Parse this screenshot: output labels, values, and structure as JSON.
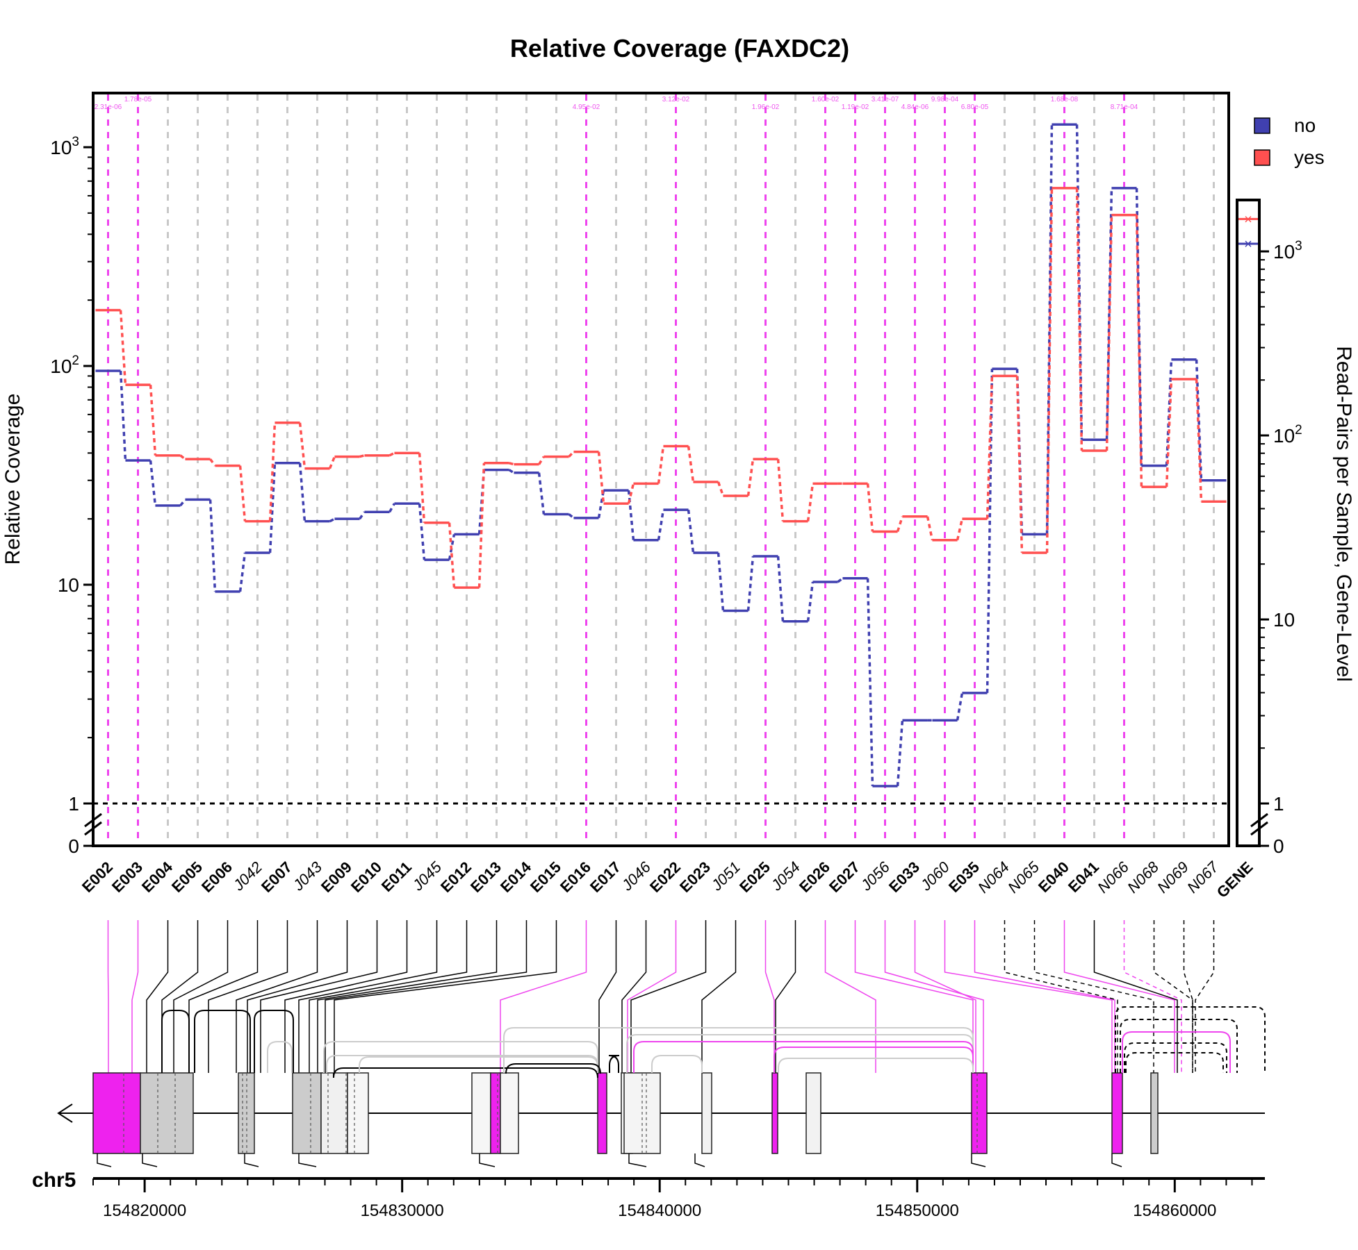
{
  "chart_data": {
    "type": "line",
    "title": "Relative Coverage (FAXDC2)",
    "ylabel": "Relative Coverage",
    "ylabel_right": "Read-Pairs per Sample, Gene-Level",
    "y_scale": "log",
    "y_ticks_left": [
      "0",
      "1",
      "10",
      "10^2",
      "10^3"
    ],
    "y_ticks_right": [
      "0",
      "1",
      "10",
      "10^2",
      "10^3"
    ],
    "reference_line": 1,
    "features": [
      {
        "id": "E002",
        "kind": "exon",
        "sig": true
      },
      {
        "id": "E003",
        "kind": "exon",
        "sig": true
      },
      {
        "id": "E004",
        "kind": "exon",
        "sig": false
      },
      {
        "id": "E005",
        "kind": "exon",
        "sig": false
      },
      {
        "id": "E006",
        "kind": "exon",
        "sig": false
      },
      {
        "id": "J042",
        "kind": "junction",
        "sig": false
      },
      {
        "id": "E007",
        "kind": "exon",
        "sig": false
      },
      {
        "id": "J043",
        "kind": "junction",
        "sig": false
      },
      {
        "id": "E009",
        "kind": "exon",
        "sig": false
      },
      {
        "id": "E010",
        "kind": "exon",
        "sig": false
      },
      {
        "id": "E011",
        "kind": "exon",
        "sig": false
      },
      {
        "id": "J045",
        "kind": "junction",
        "sig": false
      },
      {
        "id": "E012",
        "kind": "exon",
        "sig": false
      },
      {
        "id": "E013",
        "kind": "exon",
        "sig": false
      },
      {
        "id": "E014",
        "kind": "exon",
        "sig": false
      },
      {
        "id": "E015",
        "kind": "exon",
        "sig": false
      },
      {
        "id": "E016",
        "kind": "exon",
        "sig": true
      },
      {
        "id": "E017",
        "kind": "exon",
        "sig": false
      },
      {
        "id": "J046",
        "kind": "junction",
        "sig": false
      },
      {
        "id": "E022",
        "kind": "exon",
        "sig": true
      },
      {
        "id": "E023",
        "kind": "exon",
        "sig": false
      },
      {
        "id": "J051",
        "kind": "junction",
        "sig": false
      },
      {
        "id": "E025",
        "kind": "exon",
        "sig": true
      },
      {
        "id": "J054",
        "kind": "junction",
        "sig": false
      },
      {
        "id": "E026",
        "kind": "exon",
        "sig": true
      },
      {
        "id": "E027",
        "kind": "exon",
        "sig": true
      },
      {
        "id": "J056",
        "kind": "junction",
        "sig": true
      },
      {
        "id": "E033",
        "kind": "exon",
        "sig": true
      },
      {
        "id": "J060",
        "kind": "junction",
        "sig": true
      },
      {
        "id": "E035",
        "kind": "exon",
        "sig": true
      },
      {
        "id": "N064",
        "kind": "novel",
        "sig": false
      },
      {
        "id": "N065",
        "kind": "novel",
        "sig": false
      },
      {
        "id": "E040",
        "kind": "exon",
        "sig": true
      },
      {
        "id": "E041",
        "kind": "exon",
        "sig": false
      },
      {
        "id": "N066",
        "kind": "novel",
        "sig": true
      },
      {
        "id": "N068",
        "kind": "novel",
        "sig": false
      },
      {
        "id": "N069",
        "kind": "novel",
        "sig": false
      },
      {
        "id": "N067",
        "kind": "novel",
        "sig": false
      }
    ],
    "series": [
      {
        "name": "no",
        "color": "#4040b0",
        "values": [
          95,
          37,
          23,
          24.5,
          9.3,
          14,
          36,
          19.5,
          20,
          21.5,
          23.5,
          13,
          17,
          33.5,
          32.5,
          21,
          20.2,
          27,
          16,
          22,
          14,
          7.6,
          13.5,
          6.8,
          10.3,
          10.7,
          1.2,
          2.4,
          2.4,
          3.2,
          97,
          17,
          1270,
          46,
          650,
          35,
          107,
          30
        ],
        "gene_level": 1100
      },
      {
        "name": "yes",
        "color": "#ff5050",
        "values": [
          180,
          82,
          39,
          37.5,
          35,
          19.5,
          55,
          34,
          38.5,
          39,
          40,
          19.2,
          9.7,
          36,
          35.5,
          38.5,
          40.5,
          23.5,
          29,
          43,
          29.5,
          25.5,
          37.5,
          19.5,
          29,
          29,
          17.5,
          20.5,
          16,
          20,
          90,
          14,
          650,
          41,
          490,
          28,
          87,
          24
        ],
        "gene_level": 1500
      }
    ],
    "pvalues": [
      {
        "feature": "E002",
        "label": "2.31e-06"
      },
      {
        "feature": "E003",
        "label": "1.78e-05"
      },
      {
        "feature": "E016",
        "label": "4.95e-02"
      },
      {
        "feature": "E022",
        "label": "3.12e-02"
      },
      {
        "feature": "E025",
        "label": "1.96e-02"
      },
      {
        "feature": "E026",
        "label": "1.60e-02"
      },
      {
        "feature": "E027",
        "label": "1.19e-02"
      },
      {
        "feature": "J056",
        "label": "3.41e-07"
      },
      {
        "feature": "E033",
        "label": "4.84e-06"
      },
      {
        "feature": "J060",
        "label": "9.98e-04"
      },
      {
        "feature": "E035",
        "label": "6.80e-05"
      },
      {
        "feature": "E040",
        "label": "1.68e-08"
      },
      {
        "feature": "N066",
        "label": "8.71e-04"
      }
    ],
    "gene_label": "GENE",
    "legend": {
      "placement": "top-right",
      "entries": [
        "no",
        "yes"
      ]
    },
    "chromosome": "chr5",
    "genomic_ticks": [
      "154820000",
      "154830000",
      "154840000",
      "154850000",
      "154860000"
    ]
  }
}
